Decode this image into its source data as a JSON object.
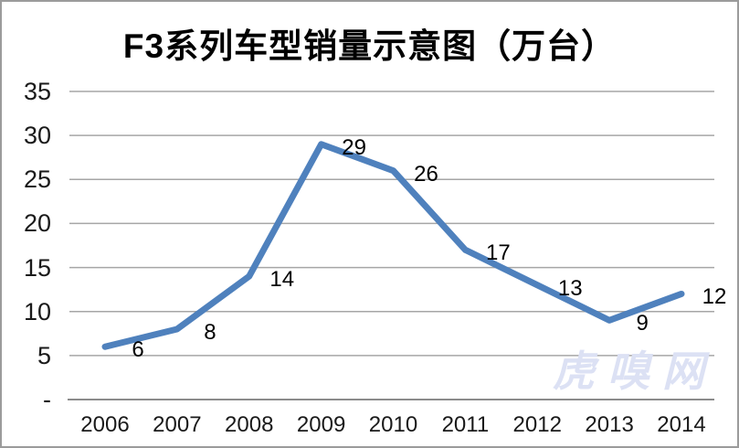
{
  "title": "F3系列车型销量示意图（万台）",
  "watermark": "虎嗅网",
  "chart_data": {
    "type": "line",
    "title": "F3系列车型销量示意图（万台）",
    "categories": [
      "2006",
      "2007",
      "2008",
      "2009",
      "2010",
      "2011",
      "2012",
      "2013",
      "2014"
    ],
    "values": [
      6,
      8,
      14,
      29,
      26,
      17,
      13,
      9,
      12
    ],
    "data_labels": [
      "6",
      "8",
      "14",
      "29",
      "26",
      "17",
      "13",
      "9",
      "12"
    ],
    "xlabel": "",
    "ylabel": "",
    "ylim": [
      0,
      35
    ],
    "ytick_interval": 5,
    "ytick_labels_top_to_bottom": [
      "35",
      "30",
      "25",
      "20",
      "15",
      "10",
      "5",
      "-"
    ],
    "grid": true,
    "legend_position": "none",
    "line_color": "#4f81bd",
    "gridline_color": "#a6a6a6",
    "axis_line_color": "#8b8b8b",
    "text_color": "#1a1a1a",
    "watermark_color": "#dce1f4"
  }
}
